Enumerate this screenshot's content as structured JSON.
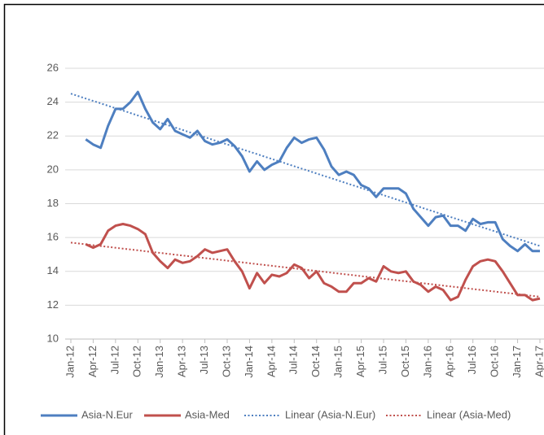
{
  "chart_data": {
    "type": "line",
    "categories": [
      "Jan-12",
      null,
      null,
      "Apr-12",
      null,
      null,
      "Jul-12",
      null,
      null,
      "Oct-12",
      null,
      null,
      "Jan-13",
      null,
      null,
      "Apr-13",
      null,
      null,
      "Jul-13",
      null,
      null,
      "Oct-13",
      null,
      null,
      "Jan-14",
      null,
      null,
      "Apr-14",
      null,
      null,
      "Jul-14",
      null,
      null,
      "Oct-14",
      null,
      null,
      "Jan-15",
      null,
      null,
      "Apr-15",
      null,
      null,
      "Jul-15",
      null,
      null,
      "Oct-15",
      null,
      null,
      "Jan-16",
      null,
      null,
      "Apr-16",
      null,
      null,
      "Jul-16",
      null,
      null,
      "Oct-16",
      null,
      null,
      "Jan-17",
      null,
      null,
      "Apr-17"
    ],
    "series": [
      {
        "name": "Asia-N.Eur",
        "color": "#4e7fc0",
        "values": [
          null,
          null,
          21.8,
          21.5,
          21.3,
          22.6,
          23.6,
          23.6,
          24.0,
          24.6,
          23.6,
          22.8,
          22.4,
          23.0,
          22.3,
          22.1,
          21.9,
          22.3,
          21.7,
          21.5,
          21.6,
          21.8,
          21.4,
          20.8,
          19.9,
          20.5,
          20.0,
          20.3,
          20.5,
          21.3,
          21.9,
          21.6,
          21.8,
          21.9,
          21.2,
          20.2,
          19.7,
          19.9,
          19.7,
          19.1,
          18.9,
          18.4,
          18.9,
          18.9,
          18.9,
          18.6,
          17.7,
          17.2,
          16.7,
          17.2,
          17.3,
          16.7,
          16.7,
          16.4,
          17.1,
          16.8,
          16.9,
          16.9,
          15.9,
          15.5,
          15.2,
          15.6,
          15.2,
          15.2
        ]
      },
      {
        "name": "Asia-Med",
        "color": "#c0504d",
        "values": [
          null,
          null,
          15.6,
          15.4,
          15.6,
          16.4,
          16.7,
          16.8,
          16.7,
          16.5,
          16.2,
          15.1,
          14.6,
          14.2,
          14.7,
          14.5,
          14.6,
          14.9,
          15.3,
          15.1,
          15.2,
          15.3,
          14.6,
          14.0,
          13.0,
          13.9,
          13.3,
          13.8,
          13.7,
          13.9,
          14.4,
          14.2,
          13.6,
          14.0,
          13.3,
          13.1,
          12.8,
          12.8,
          13.3,
          13.3,
          13.6,
          13.4,
          14.3,
          14.0,
          13.9,
          14.0,
          13.4,
          13.2,
          12.8,
          13.1,
          12.9,
          12.3,
          12.5,
          13.5,
          14.3,
          14.6,
          14.7,
          14.6,
          14.0,
          13.3,
          12.6,
          12.6,
          12.3,
          12.4
        ]
      }
    ],
    "trendlines": [
      {
        "name": "Linear (Asia-N.Eur)",
        "color": "#4e7fc0",
        "from": 24.5,
        "to": 15.5
      },
      {
        "name": "Linear (Asia-Med)",
        "color": "#c0504d",
        "from": 15.7,
        "to": 12.5
      }
    ],
    "ylim": [
      10,
      26
    ],
    "yticks": [
      10,
      12,
      14,
      16,
      18,
      20,
      22,
      24,
      26
    ],
    "grid": true
  }
}
